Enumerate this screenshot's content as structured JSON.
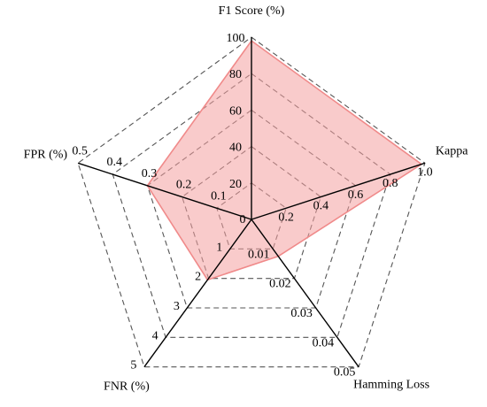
{
  "chart_data": {
    "type": "radar",
    "title": "",
    "axes": [
      {
        "name": "F1 Score (%)",
        "ticks": [
          "0",
          "20",
          "40",
          "60",
          "80",
          "100"
        ],
        "max": 100,
        "value": 98
      },
      {
        "name": "Kappa",
        "ticks": [
          "0.2",
          "0.4",
          "0.6",
          "0.8",
          "1.0"
        ],
        "max": 1.0,
        "value": 0.98
      },
      {
        "name": "Hamming Loss",
        "ticks": [
          "0.01",
          "0.02",
          "0.03",
          "0.04",
          "0.05"
        ],
        "max": 0.05,
        "value": 0.0125
      },
      {
        "name": "FNR (%)",
        "ticks": [
          "1",
          "2",
          "3",
          "4",
          "5"
        ],
        "max": 5,
        "value": 2.05
      },
      {
        "name": "FPR (%)",
        "ticks": [
          "0.1",
          "0.2",
          "0.3",
          "0.4",
          "0.5"
        ],
        "max": 0.5,
        "value": 0.3
      }
    ],
    "rings": 5,
    "grid": true,
    "legend": "none",
    "colors": {
      "fill": "#f4a0a0",
      "stroke": "#f08a8a",
      "grid": "#555555",
      "axis": "#000000"
    }
  }
}
